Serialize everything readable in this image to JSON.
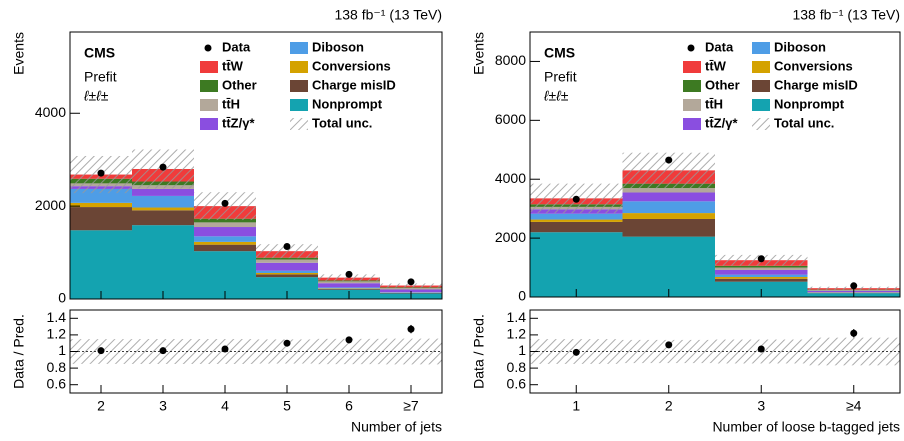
{
  "chart_data": [
    {
      "type": "stacked_histogram",
      "lumi": "138 fb⁻¹ (13 TeV)",
      "experiment": "CMS",
      "status": "Prefit",
      "region": "ℓ±ℓ±",
      "x_label": "Number of jets",
      "y_label": "Events",
      "ratio_label": "Data / Pred.",
      "categories": [
        "2",
        "3",
        "4",
        "5",
        "6",
        "≥7"
      ],
      "series": [
        {
          "name": "Nonprompt",
          "color": "#14a3b0",
          "values": [
            1480,
            1590,
            1030,
            470,
            200,
            120
          ]
        },
        {
          "name": "Charge misID",
          "color": "#6b4535",
          "values": [
            500,
            320,
            140,
            60,
            20,
            10
          ]
        },
        {
          "name": "Conversions",
          "color": "#d4a200",
          "values": [
            90,
            60,
            60,
            30,
            10,
            5
          ]
        },
        {
          "name": "Diboson",
          "color": "#4e9de6",
          "values": [
            300,
            250,
            120,
            50,
            20,
            10
          ]
        },
        {
          "name": "tt̄Z/γ*",
          "color": "#8a4ee0",
          "values": [
            60,
            150,
            200,
            170,
            90,
            60
          ]
        },
        {
          "name": "tt̄H",
          "color": "#b3a89a",
          "values": [
            60,
            80,
            100,
            70,
            40,
            30
          ]
        },
        {
          "name": "Other",
          "color": "#3d7a22",
          "values": [
            100,
            80,
            80,
            40,
            20,
            15
          ]
        },
        {
          "name": "tt̄W",
          "color": "#f03b3b",
          "values": [
            90,
            270,
            270,
            140,
            60,
            40
          ]
        }
      ],
      "data_name": "Data",
      "data": [
        2710,
        2840,
        2060,
        1130,
        530,
        370
      ],
      "unc_name": "Total unc.",
      "unc": [
        400,
        420,
        300,
        150,
        70,
        45
      ],
      "ratio": [
        1.01,
        1.01,
        1.03,
        1.1,
        1.14,
        1.27
      ],
      "ratio_errors": [
        0.02,
        0.02,
        0.02,
        0.03,
        0.04,
        0.05
      ],
      "ylim": [
        0,
        5750
      ],
      "yticks": [
        0,
        2000,
        4000
      ],
      "ratio_ylim": [
        0.5,
        1.5
      ],
      "ratio_yticks": [
        0.6,
        0.8,
        1,
        1.2,
        1.4
      ]
    },
    {
      "type": "stacked_histogram",
      "lumi": "138 fb⁻¹ (13 TeV)",
      "experiment": "CMS",
      "status": "Prefit",
      "region": "ℓ±ℓ±",
      "x_label": "Number of loose b-tagged jets",
      "y_label": "Events",
      "ratio_label": "Data / Pred.",
      "categories": [
        "1",
        "2",
        "3",
        "≥4"
      ],
      "series": [
        {
          "name": "Nonprompt",
          "color": "#14a3b0",
          "values": [
            2200,
            2050,
            520,
            130
          ]
        },
        {
          "name": "Charge misID",
          "color": "#6b4535",
          "values": [
            350,
            600,
            100,
            10
          ]
        },
        {
          "name": "Conversions",
          "color": "#d4a200",
          "values": [
            80,
            200,
            60,
            10
          ]
        },
        {
          "name": "Diboson",
          "color": "#4e9de6",
          "values": [
            200,
            400,
            80,
            10
          ]
        },
        {
          "name": "tt̄Z/γ*",
          "color": "#8a4ee0",
          "values": [
            150,
            300,
            160,
            50
          ]
        },
        {
          "name": "tt̄H",
          "color": "#b3a89a",
          "values": [
            80,
            150,
            80,
            20
          ]
        },
        {
          "name": "Other",
          "color": "#3d7a22",
          "values": [
            90,
            150,
            60,
            20
          ]
        },
        {
          "name": "tt̄W",
          "color": "#f03b3b",
          "values": [
            200,
            450,
            190,
            50
          ]
        }
      ],
      "data_name": "Data",
      "data": [
        3320,
        4650,
        1300,
        380
      ],
      "unc_name": "Total unc.",
      "unc": [
        500,
        600,
        180,
        50
      ],
      "ratio": [
        0.99,
        1.08,
        1.03,
        1.22
      ],
      "ratio_errors": [
        0.02,
        0.02,
        0.03,
        0.05
      ],
      "ylim": [
        0,
        9000
      ],
      "yticks": [
        0,
        2000,
        4000,
        6000,
        8000
      ],
      "ratio_ylim": [
        0.5,
        1.5
      ],
      "ratio_yticks": [
        0.6,
        0.8,
        1,
        1.2,
        1.4
      ]
    }
  ]
}
